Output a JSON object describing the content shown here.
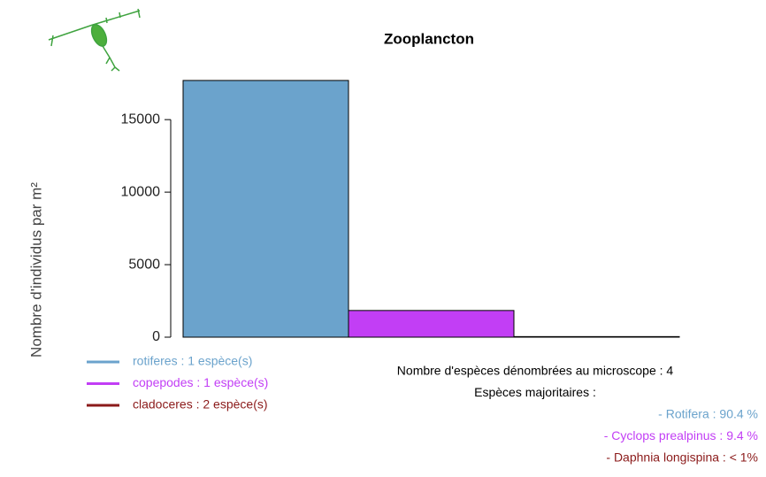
{
  "chart_data": {
    "type": "bar",
    "title": "Zooplancton",
    "y_label": "Nombre d'individus par m²",
    "series": [
      {
        "name": "rotiferes : 1  espèce(s)",
        "color": "#6ba3cc",
        "values": [
          17700
        ]
      },
      {
        "name": "copepodes : 1  espèce(s)",
        "color": "#c23ef5",
        "values": [
          1840
        ]
      },
      {
        "name": "cladoceres : 2  espèce(s)",
        "color": "#8b1a1a",
        "values": [
          40
        ]
      }
    ],
    "ylim": [
      0,
      18000
    ],
    "yticks": [
      0,
      5000,
      10000,
      15000
    ],
    "grid": false,
    "annotations": [
      {
        "text": "Nombre d'espèces dénombrées au microscope : 4",
        "color": "#000000",
        "align": "middle"
      },
      {
        "text": "Espèces majoritaires :",
        "color": "#000000",
        "align": "middle"
      },
      {
        "text": "- Rotifera : 90.4 %",
        "color": "#6ba3cc",
        "align": "end"
      },
      {
        "text": "- Cyclops prealpinus : 9.4 %",
        "color": "#c23ef5",
        "align": "end"
      },
      {
        "text": "- Daphnia longispina : < 1%",
        "color": "#8b1a1a",
        "align": "end"
      }
    ]
  }
}
